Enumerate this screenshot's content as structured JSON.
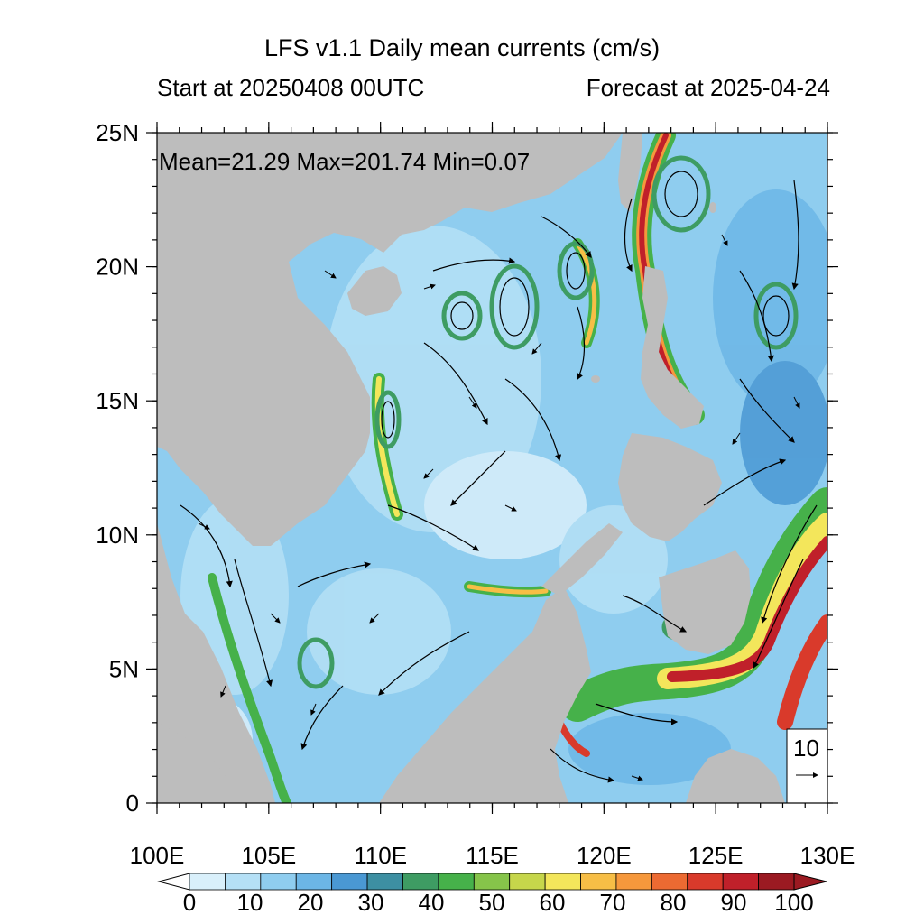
{
  "title": "LFS v1.1 Daily mean currents (cm/s)",
  "start_label": "Start at 20250408 00UTC",
  "forecast_label": "Forecast at 2025-04-24",
  "stats_label": "Mean=21.29  Max=201.74  Min=0.07",
  "reference_vector": "10",
  "colors": {
    "land": "#bdbdbd",
    "background": "#ffffff"
  },
  "map": {
    "lon_range": [
      100,
      130
    ],
    "lat_range": [
      0,
      25
    ],
    "lon_ticks": [
      "100E",
      "105E",
      "110E",
      "115E",
      "120E",
      "125E",
      "130E"
    ],
    "lat_ticks": [
      "0",
      "5N",
      "10N",
      "15N",
      "20N",
      "25N"
    ]
  },
  "colorbar": {
    "labels": [
      "0",
      "10",
      "20",
      "30",
      "40",
      "50",
      "60",
      "70",
      "80",
      "90",
      "100"
    ],
    "colors": [
      "#d9f0fb",
      "#b5e0f6",
      "#8fcdef",
      "#6cb6e6",
      "#4a98d3",
      "#3d8fa2",
      "#3e9c63",
      "#46b14a",
      "#86c44a",
      "#c6d64b",
      "#f3e65b",
      "#f7be46",
      "#f6983c",
      "#ec6a32",
      "#d93a2b",
      "#c0202a",
      "#9b1a22"
    ]
  }
}
